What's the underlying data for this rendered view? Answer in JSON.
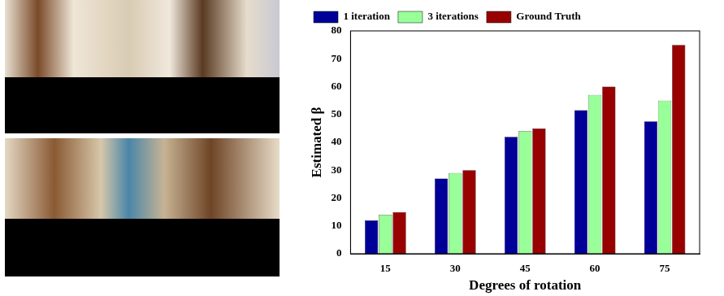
{
  "chart_data": {
    "type": "bar",
    "x_label": "Degrees of rotation",
    "y_label": "Estimated β",
    "categories": [
      "15",
      "30",
      "45",
      "60",
      "75"
    ],
    "series": [
      {
        "name": "1 iteration",
        "color": "#000099",
        "values": [
          12,
          27,
          42,
          51.5,
          47.5
        ]
      },
      {
        "name": "3 iterations",
        "color": "#99ff99",
        "values": [
          14,
          29,
          44,
          57,
          55
        ]
      },
      {
        "name": "Ground Truth",
        "color": "#990000",
        "values": [
          15,
          30,
          45,
          60,
          75
        ]
      }
    ],
    "ylim": [
      0,
      80
    ],
    "yticks": [
      0,
      10,
      20,
      30,
      40,
      50,
      60,
      70,
      80
    ],
    "grid": false,
    "legend": "upper left"
  }
}
